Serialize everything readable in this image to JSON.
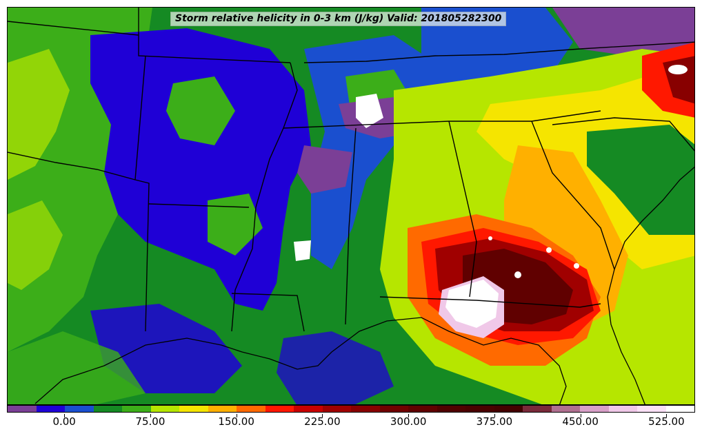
{
  "title": "Storm relative helicity in 0-3 km (J/kg) Valid: 201805282300",
  "colorbar": {
    "colors": [
      "#7b3f96",
      "#1f00d6",
      "#1a4fcf",
      "#158a23",
      "#3cae19",
      "#b6e600",
      "#f5e500",
      "#ffb000",
      "#ff6a00",
      "#ff1800",
      "#c80000",
      "#a00000",
      "#880000",
      "#700000",
      "#600000",
      "#500000",
      "#4a0000",
      "#440000",
      "#7a2a3a",
      "#b07090",
      "#d8a0c8",
      "#f0c8e8",
      "#fae0f6",
      "#ffffff"
    ],
    "tick_labels": [
      "0.00",
      "75.00",
      "150.00",
      "225.00",
      "300.00",
      "375.00",
      "450.00",
      "525.00"
    ]
  },
  "map_colors": {
    "ocean_green": "#158a23",
    "boundary": "#000000"
  }
}
